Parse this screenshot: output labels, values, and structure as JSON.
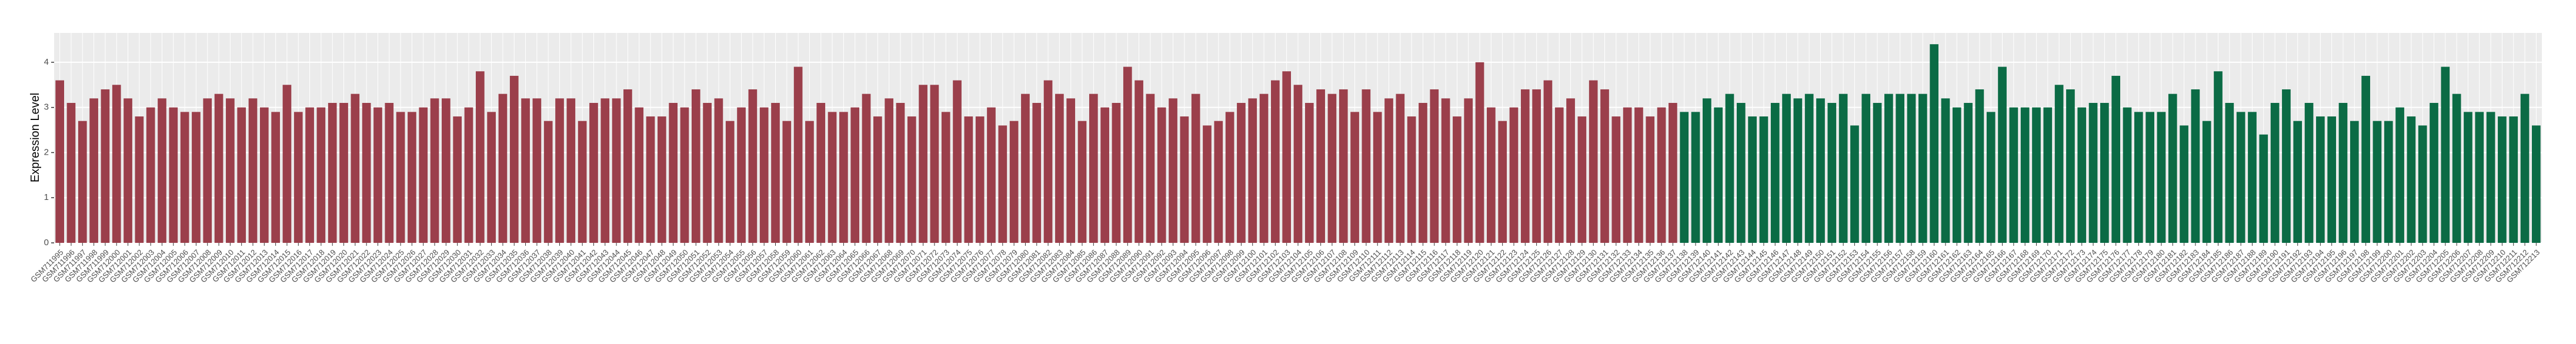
{
  "chart_data": {
    "type": "bar",
    "y_label": "Expression Level",
    "categories": [
      "GSM711995",
      "GSM711996",
      "GSM711997",
      "GSM711998",
      "GSM711999",
      "GSM712000",
      "GSM712001",
      "GSM712002",
      "GSM712003",
      "GSM712004",
      "GSM712005",
      "GSM712006",
      "GSM712007",
      "GSM712008",
      "GSM712009",
      "GSM712010",
      "GSM712011",
      "GSM712012",
      "GSM712013",
      "GSM712014",
      "GSM712015",
      "GSM712016",
      "GSM712017",
      "GSM712018",
      "GSM712019",
      "GSM712020",
      "GSM712021",
      "GSM712022",
      "GSM712023",
      "GSM712024",
      "GSM712025",
      "GSM712026",
      "GSM712027",
      "GSM712028",
      "GSM712029",
      "GSM712030",
      "GSM712031",
      "GSM712032",
      "GSM712033",
      "GSM712034",
      "GSM712035",
      "GSM712036",
      "GSM712037",
      "GSM712038",
      "GSM712039",
      "GSM712040",
      "GSM712041",
      "GSM712042",
      "GSM712043",
      "GSM712044",
      "GSM712045",
      "GSM712046",
      "GSM712047",
      "GSM712048",
      "GSM712049",
      "GSM712050",
      "GSM712051",
      "GSM712052",
      "GSM712053",
      "GSM712054",
      "GSM712055",
      "GSM712056",
      "GSM712057",
      "GSM712058",
      "GSM712059",
      "GSM712060",
      "GSM712061",
      "GSM712062",
      "GSM712063",
      "GSM712064",
      "GSM712065",
      "GSM712066",
      "GSM712067",
      "GSM712068",
      "GSM712069",
      "GSM712070",
      "GSM712071",
      "GSM712072",
      "GSM712073",
      "GSM712074",
      "GSM712075",
      "GSM712076",
      "GSM712077",
      "GSM712078",
      "GSM712079",
      "GSM712080",
      "GSM712081",
      "GSM712082",
      "GSM712083",
      "GSM712084",
      "GSM712085",
      "GSM712086",
      "GSM712087",
      "GSM712088",
      "GSM712089",
      "GSM712090",
      "GSM712091",
      "GSM712092",
      "GSM712093",
      "GSM712094",
      "GSM712095",
      "GSM712096",
      "GSM712097",
      "GSM712098",
      "GSM712099",
      "GSM712100",
      "GSM712101",
      "GSM712102",
      "GSM712103",
      "GSM712104",
      "GSM712105",
      "GSM712106",
      "GSM712107",
      "GSM712108",
      "GSM712109",
      "GSM712110",
      "GSM712111",
      "GSM712112",
      "GSM712113",
      "GSM712114",
      "GSM712115",
      "GSM712116",
      "GSM712117",
      "GSM712118",
      "GSM712119",
      "GSM712120",
      "GSM712121",
      "GSM712122",
      "GSM712123",
      "GSM712124",
      "GSM712125",
      "GSM712126",
      "GSM712127",
      "GSM712128",
      "GSM712129",
      "GSM712130",
      "GSM712131",
      "GSM712132",
      "GSM712133",
      "GSM712134",
      "GSM712135",
      "GSM712136",
      "GSM712137",
      "GSM712138",
      "GSM712139",
      "GSM712140",
      "GSM712141",
      "GSM712142",
      "GSM712143",
      "GSM712144",
      "GSM712145",
      "GSM712146",
      "GSM712147",
      "GSM712148",
      "GSM712149",
      "GSM712150",
      "GSM712151",
      "GSM712152",
      "GSM712153",
      "GSM712154",
      "GSM712155",
      "GSM712156",
      "GSM712157",
      "GSM712158",
      "GSM712159",
      "GSM712160",
      "GSM712161",
      "GSM712162",
      "GSM712163",
      "GSM712164",
      "GSM712165",
      "GSM712166",
      "GSM712167",
      "GSM712168",
      "GSM712169",
      "GSM712170",
      "GSM712171",
      "GSM712172",
      "GSM712173",
      "GSM712174",
      "GSM712175",
      "GSM712176",
      "GSM712177",
      "GSM712178",
      "GSM712179",
      "GSM712180",
      "GSM712181",
      "GSM712182",
      "GSM712183",
      "GSM712184",
      "GSM712185",
      "GSM712186",
      "GSM712187",
      "GSM712188",
      "GSM712189",
      "GSM712190",
      "GSM712191",
      "GSM712192",
      "GSM712193",
      "GSM712194",
      "GSM712195",
      "GSM712196",
      "GSM712197",
      "GSM712198",
      "GSM712199",
      "GSM712200",
      "GSM712201",
      "GSM712202",
      "GSM712203",
      "GSM712204",
      "GSM712205",
      "GSM712206",
      "GSM712207",
      "GSM712208",
      "GSM712209",
      "GSM712210",
      "GSM712211",
      "GSM712212",
      "GSM712213"
    ],
    "series": [
      {
        "color": "#9b3f4b",
        "values": [
          3.6,
          3.1,
          2.7,
          3.2,
          3.4,
          3.5,
          3.2,
          2.8,
          3.0,
          3.2,
          3.0,
          2.9,
          2.9,
          3.2,
          3.3,
          3.2,
          3.0,
          3.2,
          3.0,
          2.9,
          3.5,
          2.9,
          3.0,
          3.0,
          3.1,
          3.1,
          3.3,
          3.1,
          3.0,
          3.1,
          2.9,
          2.9,
          3.0,
          3.2,
          3.2,
          2.8,
          3.0,
          3.8,
          2.9,
          3.3,
          3.7,
          3.2,
          3.2,
          2.7,
          3.2,
          3.2,
          2.7,
          3.1,
          3.2,
          3.2,
          3.4,
          3.0,
          2.8,
          2.8,
          3.1,
          3.0,
          3.4,
          3.1,
          3.2,
          2.7,
          3.0,
          3.4,
          3.0,
          3.1,
          2.7,
          3.9,
          2.7,
          3.1,
          2.9,
          2.9,
          3.0,
          3.3,
          2.8,
          3.2,
          3.1,
          2.8,
          3.5,
          3.5,
          2.9,
          3.6,
          2.8,
          2.8,
          3.0,
          2.6,
          2.7,
          3.3,
          3.1,
          3.6,
          3.3,
          3.2,
          2.7,
          3.3,
          3.0,
          3.1,
          3.9,
          3.6,
          3.3,
          3.0,
          3.2,
          2.8,
          3.3,
          2.6,
          2.7,
          2.9,
          3.1,
          3.2,
          3.3,
          3.6,
          3.8,
          3.5,
          3.1,
          3.4,
          3.3,
          3.4,
          2.9,
          3.4,
          2.9,
          3.2,
          3.3,
          2.8,
          3.1,
          3.4,
          3.2,
          2.8,
          3.2,
          4.0,
          3.0,
          2.7,
          3.0,
          3.4,
          3.4,
          3.6,
          3.0,
          3.2,
          2.8,
          3.6,
          3.4,
          2.8,
          3.0,
          3.0,
          2.8,
          3.0,
          3.1,
          null,
          null,
          null,
          null,
          null,
          null,
          null,
          null,
          null,
          null,
          null,
          null,
          null,
          null,
          null,
          null,
          null,
          null,
          null,
          null,
          null,
          null,
          null,
          null,
          null,
          null,
          null,
          null,
          null,
          null,
          null,
          null,
          null,
          null,
          null,
          null,
          null,
          null,
          null,
          null,
          null,
          null,
          null,
          null,
          null,
          null,
          null,
          null,
          null,
          null,
          null,
          null,
          null,
          null,
          null,
          null,
          null,
          null,
          null,
          null,
          null,
          null,
          null,
          null,
          null,
          null,
          null,
          null,
          null,
          null,
          null,
          null,
          null,
          null,
          null,
          null
        ]
      },
      {
        "color": "#0b6b45",
        "values": [
          null,
          null,
          null,
          null,
          null,
          null,
          null,
          null,
          null,
          null,
          null,
          null,
          null,
          null,
          null,
          null,
          null,
          null,
          null,
          null,
          null,
          null,
          null,
          null,
          null,
          null,
          null,
          null,
          null,
          null,
          null,
          null,
          null,
          null,
          null,
          null,
          null,
          null,
          null,
          null,
          null,
          null,
          null,
          null,
          null,
          null,
          null,
          null,
          null,
          null,
          null,
          null,
          null,
          null,
          null,
          null,
          null,
          null,
          null,
          null,
          null,
          null,
          null,
          null,
          null,
          null,
          null,
          null,
          null,
          null,
          null,
          null,
          null,
          null,
          null,
          null,
          null,
          null,
          null,
          null,
          null,
          null,
          null,
          null,
          null,
          null,
          null,
          null,
          null,
          null,
          null,
          null,
          null,
          null,
          null,
          null,
          null,
          null,
          null,
          null,
          null,
          null,
          null,
          null,
          null,
          null,
          null,
          null,
          null,
          null,
          null,
          null,
          null,
          null,
          null,
          null,
          null,
          null,
          null,
          null,
          null,
          null,
          null,
          null,
          null,
          null,
          null,
          null,
          null,
          null,
          null,
          null,
          null,
          null,
          null,
          null,
          null,
          null,
          null,
          null,
          null,
          null,
          null,
          2.9,
          2.9,
          3.2,
          3.0,
          3.3,
          3.1,
          2.8,
          2.8,
          3.1,
          3.3,
          3.2,
          3.3,
          3.2,
          3.1,
          3.3,
          2.6,
          3.3,
          3.1,
          3.3,
          3.3,
          3.3,
          3.3,
          4.4,
          3.2,
          3.0,
          3.1,
          3.4,
          2.9,
          3.9,
          3.0,
          3.0,
          3.0,
          3.0,
          3.5,
          3.4,
          3.0,
          3.1,
          3.1,
          3.7,
          3.0,
          2.9,
          2.9,
          2.9,
          3.3,
          2.6,
          3.4,
          2.7,
          3.8,
          3.1,
          2.9,
          2.9,
          2.4,
          3.1,
          3.4,
          2.7,
          3.1,
          2.8,
          2.8,
          3.1,
          2.7,
          3.7,
          2.7,
          2.7,
          3.0,
          2.8,
          2.6,
          3.1,
          3.9,
          3.3,
          2.9,
          2.9,
          2.9,
          2.8,
          2.8,
          3.3,
          2.6
        ]
      }
    ],
    "ylim": [
      0,
      4.65
    ],
    "yticks": [
      0,
      1,
      2,
      3,
      4
    ],
    "grid": true
  }
}
